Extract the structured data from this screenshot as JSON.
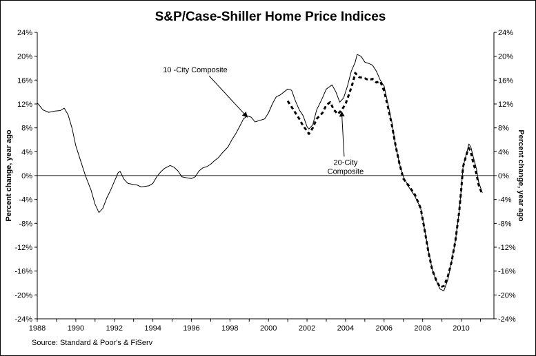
{
  "chart_data": {
    "type": "line",
    "title": "S&P/Case-Shiller Home Price Indices",
    "ylabel_left": "Percent change, year ago",
    "ylabel_right": "Percent change, year ago",
    "source": "Source: Standard & Poor's & FiServ",
    "xlim": [
      1988,
      2011.7
    ],
    "ylim": [
      -24,
      24
    ],
    "x_ticks": [
      1988,
      1990,
      1992,
      1994,
      1996,
      1998,
      2000,
      2002,
      2004,
      2006,
      2008,
      2010
    ],
    "y_ticks": [
      -24,
      -20,
      -16,
      -12,
      -8,
      -4,
      0,
      4,
      8,
      12,
      16,
      20,
      24
    ],
    "y_tick_labels": [
      "-24%",
      "-20%",
      "-16%",
      "-12%",
      "-8%",
      "-4%",
      "0%",
      "4%",
      "8%",
      "12%",
      "16%",
      "20%",
      "24%"
    ],
    "zero_line": true,
    "grid": false,
    "series": [
      {
        "key": "ten_city",
        "style": "solid",
        "points": [
          [
            1988.0,
            12.2
          ],
          [
            1988.3,
            11.0
          ],
          [
            1988.6,
            10.6
          ],
          [
            1988.9,
            10.8
          ],
          [
            1989.2,
            10.9
          ],
          [
            1989.4,
            11.3
          ],
          [
            1989.6,
            10.2
          ],
          [
            1989.8,
            8.0
          ],
          [
            1990.0,
            5.0
          ],
          [
            1990.3,
            2.0
          ],
          [
            1990.5,
            0.0
          ],
          [
            1990.8,
            -2.5
          ],
          [
            1991.0,
            -4.8
          ],
          [
            1991.2,
            -6.2
          ],
          [
            1991.4,
            -5.5
          ],
          [
            1991.6,
            -3.8
          ],
          [
            1991.8,
            -2.5
          ],
          [
            1992.0,
            -1.0
          ],
          [
            1992.2,
            0.5
          ],
          [
            1992.3,
            0.7
          ],
          [
            1992.5,
            -0.6
          ],
          [
            1992.7,
            -1.3
          ],
          [
            1993.0,
            -1.5
          ],
          [
            1993.2,
            -1.6
          ],
          [
            1993.4,
            -1.9
          ],
          [
            1993.6,
            -1.8
          ],
          [
            1993.8,
            -1.7
          ],
          [
            1994.0,
            -1.3
          ],
          [
            1994.2,
            -0.2
          ],
          [
            1994.4,
            0.6
          ],
          [
            1994.6,
            1.2
          ],
          [
            1994.9,
            1.7
          ],
          [
            1995.1,
            1.4
          ],
          [
            1995.3,
            0.8
          ],
          [
            1995.5,
            -0.2
          ],
          [
            1995.8,
            -0.4
          ],
          [
            1996.0,
            -0.5
          ],
          [
            1996.2,
            -0.2
          ],
          [
            1996.4,
            0.8
          ],
          [
            1996.6,
            1.3
          ],
          [
            1996.8,
            1.5
          ],
          [
            1997.0,
            1.9
          ],
          [
            1997.2,
            2.5
          ],
          [
            1997.4,
            3.0
          ],
          [
            1997.6,
            3.8
          ],
          [
            1997.9,
            4.8
          ],
          [
            1998.1,
            6.0
          ],
          [
            1998.3,
            7.0
          ],
          [
            1998.5,
            8.2
          ],
          [
            1998.7,
            9.5
          ],
          [
            1998.9,
            10.0
          ],
          [
            1999.1,
            9.8
          ],
          [
            1999.3,
            9.0
          ],
          [
            1999.5,
            9.2
          ],
          [
            1999.8,
            9.5
          ],
          [
            2000.0,
            10.5
          ],
          [
            2000.2,
            12.0
          ],
          [
            2000.4,
            13.2
          ],
          [
            2000.6,
            13.5
          ],
          [
            2000.8,
            14.0
          ],
          [
            2001.0,
            14.5
          ],
          [
            2001.2,
            14.3
          ],
          [
            2001.4,
            12.5
          ],
          [
            2001.6,
            11.0
          ],
          [
            2001.8,
            10.0
          ],
          [
            2002.0,
            8.2
          ],
          [
            2002.1,
            7.8
          ],
          [
            2002.3,
            8.5
          ],
          [
            2002.5,
            11.0
          ],
          [
            2002.8,
            13.0
          ],
          [
            2003.0,
            14.5
          ],
          [
            2003.3,
            15.2
          ],
          [
            2003.5,
            14.0
          ],
          [
            2003.7,
            12.3
          ],
          [
            2003.9,
            13.0
          ],
          [
            2004.1,
            15.0
          ],
          [
            2004.3,
            17.5
          ],
          [
            2004.5,
            19.0
          ],
          [
            2004.6,
            20.3
          ],
          [
            2004.8,
            20.0
          ],
          [
            2005.0,
            19.0
          ],
          [
            2005.2,
            18.8
          ],
          [
            2005.4,
            18.5
          ],
          [
            2005.6,
            17.5
          ],
          [
            2005.8,
            16.0
          ],
          [
            2006.0,
            15.0
          ],
          [
            2006.2,
            12.0
          ],
          [
            2006.4,
            9.0
          ],
          [
            2006.6,
            5.0
          ],
          [
            2006.8,
            2.0
          ],
          [
            2007.0,
            -0.2
          ],
          [
            2007.3,
            -2.0
          ],
          [
            2007.6,
            -3.5
          ],
          [
            2007.9,
            -5.5
          ],
          [
            2008.1,
            -9.0
          ],
          [
            2008.3,
            -12.5
          ],
          [
            2008.5,
            -15.8
          ],
          [
            2008.7,
            -17.5
          ],
          [
            2008.9,
            -19.0
          ],
          [
            2009.1,
            -19.3
          ],
          [
            2009.3,
            -17.5
          ],
          [
            2009.5,
            -14.5
          ],
          [
            2009.7,
            -11.0
          ],
          [
            2009.9,
            -6.0
          ],
          [
            2010.0,
            -2.5
          ],
          [
            2010.1,
            1.5
          ],
          [
            2010.3,
            4.0
          ],
          [
            2010.4,
            5.3
          ],
          [
            2010.5,
            4.8
          ],
          [
            2010.6,
            3.5
          ],
          [
            2010.8,
            1.0
          ],
          [
            2010.9,
            -1.0
          ],
          [
            2011.1,
            -2.9
          ]
        ]
      },
      {
        "key": "twenty_city",
        "style": "dashed",
        "points": [
          [
            2001.0,
            12.5
          ],
          [
            2001.2,
            11.5
          ],
          [
            2001.4,
            10.5
          ],
          [
            2001.6,
            9.5
          ],
          [
            2001.8,
            8.3
          ],
          [
            2002.0,
            7.5
          ],
          [
            2002.1,
            7.0
          ],
          [
            2002.3,
            8.0
          ],
          [
            2002.5,
            9.5
          ],
          [
            2002.8,
            10.5
          ],
          [
            2003.0,
            11.8
          ],
          [
            2003.2,
            12.3
          ],
          [
            2003.4,
            11.0
          ],
          [
            2003.6,
            10.3
          ],
          [
            2003.8,
            11.0
          ],
          [
            2004.0,
            12.0
          ],
          [
            2004.2,
            13.8
          ],
          [
            2004.4,
            15.8
          ],
          [
            2004.5,
            17.2
          ],
          [
            2004.7,
            16.5
          ],
          [
            2005.0,
            16.3
          ],
          [
            2005.2,
            16.0
          ],
          [
            2005.4,
            16.2
          ],
          [
            2005.6,
            15.6
          ],
          [
            2005.8,
            15.8
          ],
          [
            2006.0,
            14.2
          ],
          [
            2006.2,
            11.5
          ],
          [
            2006.4,
            8.5
          ],
          [
            2006.6,
            5.0
          ],
          [
            2006.8,
            2.0
          ],
          [
            2007.0,
            -0.5
          ],
          [
            2007.3,
            -1.8
          ],
          [
            2007.6,
            -3.2
          ],
          [
            2007.9,
            -5.5
          ],
          [
            2008.1,
            -9.0
          ],
          [
            2008.3,
            -12.8
          ],
          [
            2008.5,
            -15.8
          ],
          [
            2008.7,
            -17.5
          ],
          [
            2008.9,
            -18.7
          ],
          [
            2009.1,
            -18.5
          ],
          [
            2009.3,
            -17.0
          ],
          [
            2009.5,
            -14.5
          ],
          [
            2009.7,
            -11.0
          ],
          [
            2009.9,
            -6.0
          ],
          [
            2010.0,
            -2.5
          ],
          [
            2010.1,
            1.5
          ],
          [
            2010.3,
            3.8
          ],
          [
            2010.4,
            4.6
          ],
          [
            2010.5,
            4.0
          ],
          [
            2010.6,
            2.5
          ],
          [
            2010.8,
            0.2
          ],
          [
            2010.9,
            -1.5
          ],
          [
            2011.1,
            -3.2
          ]
        ]
      }
    ],
    "annotations": [
      {
        "key": "ten_city_label",
        "lines": [
          "10 -City Composite"
        ],
        "x_data": 1996.2,
        "y_data": 17.3,
        "arrow_to": [
          1998.9,
          9.8
        ]
      },
      {
        "key": "twenty_city_label",
        "lines": [
          "20-City",
          "Composite"
        ],
        "x_data": 2004.0,
        "y_data": 1.8,
        "arrow_to": [
          2003.8,
          10.7
        ]
      }
    ]
  }
}
